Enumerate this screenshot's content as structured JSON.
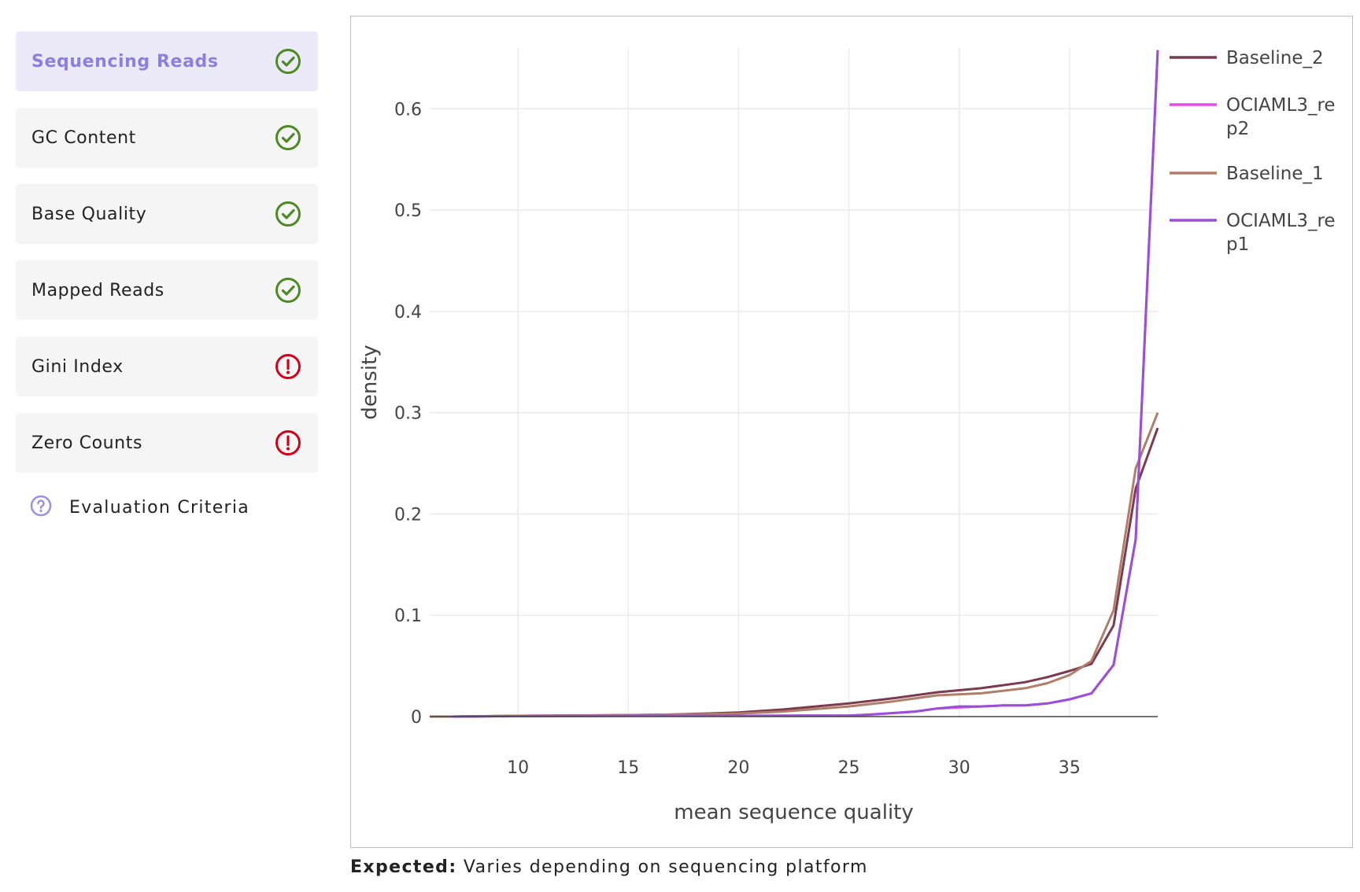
{
  "sidebar": {
    "items": [
      {
        "label": "Sequencing Reads",
        "status": "pass",
        "active": true
      },
      {
        "label": "GC Content",
        "status": "pass",
        "active": false
      },
      {
        "label": "Base Quality",
        "status": "pass",
        "active": false
      },
      {
        "label": "Mapped Reads",
        "status": "pass",
        "active": false
      },
      {
        "label": "Gini Index",
        "status": "fail",
        "active": false
      },
      {
        "label": "Zero Counts",
        "status": "fail",
        "active": false
      }
    ],
    "criteria_label": "Evaluation Criteria"
  },
  "colors": {
    "pass": "#4e8a24",
    "fail": "#d0021b",
    "accent": "#8b80dd",
    "help": "#9b8fe6"
  },
  "chart_data": {
    "type": "line",
    "xlabel": "mean sequence quality",
    "ylabel": "density",
    "xlim": [
      6,
      39
    ],
    "ylim": [
      0,
      0.66
    ],
    "xticks": [
      10,
      15,
      20,
      25,
      30,
      35
    ],
    "yticks": [
      0,
      0.1,
      0.2,
      0.3,
      0.4,
      0.5,
      0.6
    ],
    "ytick_labels": [
      "0",
      "0.1",
      "0.2",
      "0.3",
      "0.4",
      "0.5",
      "0.6"
    ],
    "grid": true,
    "legend_position": "top-right",
    "series": [
      {
        "name": "Baseline_2",
        "color": "#7b3a4e",
        "x": [
          6,
          7,
          10,
          15,
          17,
          20,
          22,
          25,
          27,
          29,
          31,
          33,
          34,
          35,
          36,
          37,
          38,
          39
        ],
        "y": [
          0,
          0,
          0.0008,
          0.0015,
          0.002,
          0.004,
          0.007,
          0.013,
          0.018,
          0.024,
          0.028,
          0.034,
          0.039,
          0.045,
          0.052,
          0.09,
          0.225,
          0.285
        ]
      },
      {
        "name": "OCIAML3_rep2",
        "color": "#e14fe8",
        "x": [
          7,
          10,
          15,
          20,
          24,
          25,
          26,
          28,
          29,
          30,
          31,
          32,
          33,
          34,
          35,
          36,
          37,
          38,
          39
        ],
        "y": [
          0,
          0.0005,
          0.0008,
          0.0008,
          0.001,
          0.001,
          0.002,
          0.005,
          0.008,
          0.009,
          0.01,
          0.011,
          0.011,
          0.013,
          0.017,
          0.023,
          0.051,
          0.175,
          0.658
        ]
      },
      {
        "name": "Baseline_1",
        "color": "#b07d68",
        "x": [
          6,
          7,
          10,
          15,
          17,
          20,
          22,
          25,
          27,
          29,
          31,
          33,
          34,
          35,
          36,
          37,
          38,
          39
        ],
        "y": [
          0,
          0,
          0.0008,
          0.0015,
          0.002,
          0.003,
          0.005,
          0.01,
          0.015,
          0.021,
          0.023,
          0.028,
          0.033,
          0.041,
          0.055,
          0.105,
          0.245,
          0.3
        ]
      },
      {
        "name": "OCIAML3_rep1",
        "color": "#9a4fd9",
        "x": [
          7,
          10,
          15,
          20,
          24,
          25,
          26,
          28,
          29,
          30,
          31,
          32,
          33,
          34,
          35,
          36,
          37,
          38,
          39
        ],
        "y": [
          0,
          0.0005,
          0.0008,
          0.0008,
          0.001,
          0.001,
          0.002,
          0.005,
          0.008,
          0.01,
          0.01,
          0.011,
          0.011,
          0.013,
          0.017,
          0.023,
          0.051,
          0.175,
          0.658
        ]
      }
    ]
  },
  "expected": {
    "label": "Expected:",
    "text": "Varies depending on sequencing platform"
  }
}
